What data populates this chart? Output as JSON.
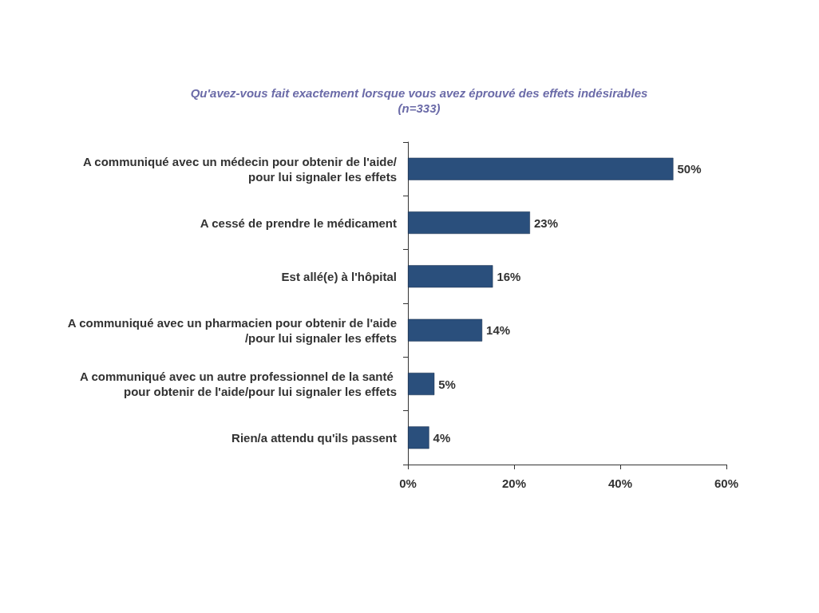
{
  "chart_data": {
    "type": "bar",
    "orientation": "horizontal",
    "title": "Qu'avez-vous fait exactement lorsque vous avez éprouvé des effets indésirables",
    "subtitle": "(n=333)",
    "categories": [
      "A communiqué avec un médecin pour obtenir de l'aide/pour lui signaler les effets",
      "A cessé de prendre le médicament",
      "Est allé(e) à l'hôpital",
      "A communiqué avec un pharmacien pour obtenir de l'aide/pour lui signaler les effets",
      "A communiqué avec un autre professionnel de la santé pour obtenir de l'aide/pour lui signaler les effets",
      "Rien/a attendu qu'ils passent"
    ],
    "values": [
      50,
      23,
      16,
      14,
      5,
      4
    ],
    "value_labels": [
      "50%",
      "23%",
      "16%",
      "14%",
      "5%",
      "4%"
    ],
    "color": "#2a4f7c",
    "xlim": [
      0,
      60
    ],
    "xticks": [
      {
        "value": 0,
        "label": "0%"
      },
      {
        "value": 20,
        "label": "20%"
      },
      {
        "value": 40,
        "label": "40%"
      },
      {
        "value": 60,
        "label": "60%"
      }
    ],
    "grid": false
  }
}
